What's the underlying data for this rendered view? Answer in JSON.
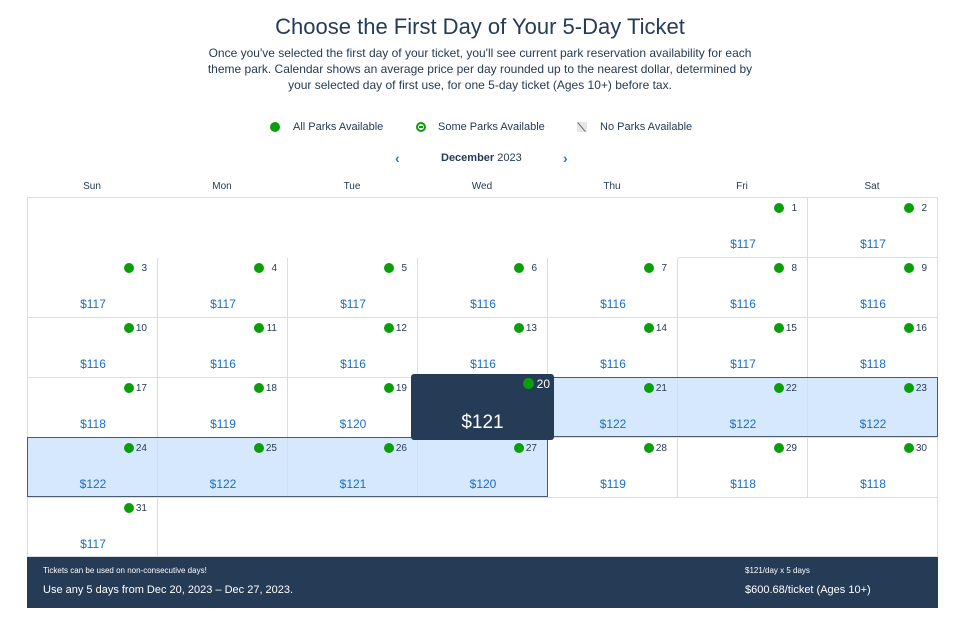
{
  "title": "Choose the First Day of Your 5-Day Ticket",
  "description": "Once you've selected the first day of your ticket, you'll see current park reservation availability for each theme park. Calendar shows an average price per day rounded up to the nearest dollar, determined by your selected day of first use, for one 5-day ticket (Ages 10+) before tax.",
  "legend": {
    "all": "All Parks Available",
    "some": "Some Parks Available",
    "none": "No Parks Available"
  },
  "calendar": {
    "month": "December",
    "year": "2023",
    "prev_icon": "chevron-left-icon",
    "next_icon": "chevron-right-icon",
    "weekdays": [
      "Sun",
      "Mon",
      "Tue",
      "Wed",
      "Thu",
      "Fri",
      "Sat"
    ],
    "first_weekday_index": 5,
    "selected_day": 20,
    "highlighted_days": [
      21,
      22,
      23,
      24,
      25,
      26,
      27
    ],
    "availability_color": "#0a9e0a",
    "days": [
      {
        "day": "1",
        "price": "$117"
      },
      {
        "day": "2",
        "price": "$117"
      },
      {
        "day": "3",
        "price": "$117"
      },
      {
        "day": "4",
        "price": "$117"
      },
      {
        "day": "5",
        "price": "$117"
      },
      {
        "day": "6",
        "price": "$116"
      },
      {
        "day": "7",
        "price": "$116"
      },
      {
        "day": "8",
        "price": "$116"
      },
      {
        "day": "9",
        "price": "$116"
      },
      {
        "day": "10",
        "price": "$116"
      },
      {
        "day": "11",
        "price": "$116"
      },
      {
        "day": "12",
        "price": "$116"
      },
      {
        "day": "13",
        "price": "$116"
      },
      {
        "day": "14",
        "price": "$116"
      },
      {
        "day": "15",
        "price": "$117"
      },
      {
        "day": "16",
        "price": "$118"
      },
      {
        "day": "17",
        "price": "$118"
      },
      {
        "day": "18",
        "price": "$119"
      },
      {
        "day": "19",
        "price": "$120"
      },
      {
        "day": "20",
        "price": "$121"
      },
      {
        "day": "21",
        "price": "$122"
      },
      {
        "day": "22",
        "price": "$122"
      },
      {
        "day": "23",
        "price": "$122"
      },
      {
        "day": "24",
        "price": "$122"
      },
      {
        "day": "25",
        "price": "$122"
      },
      {
        "day": "26",
        "price": "$121"
      },
      {
        "day": "27",
        "price": "$120"
      },
      {
        "day": "28",
        "price": "$119"
      },
      {
        "day": "29",
        "price": "$118"
      },
      {
        "day": "30",
        "price": "$118"
      },
      {
        "day": "31",
        "price": "$117"
      }
    ]
  },
  "footer": {
    "note": "Tickets can be used on non-consecutive days!",
    "range": "Use any 5 days from Dec 20, 2023 – Dec 27, 2023.",
    "per_day": "$121/day x 5 days",
    "total": "$600.68/ticket (Ages 10+)"
  }
}
